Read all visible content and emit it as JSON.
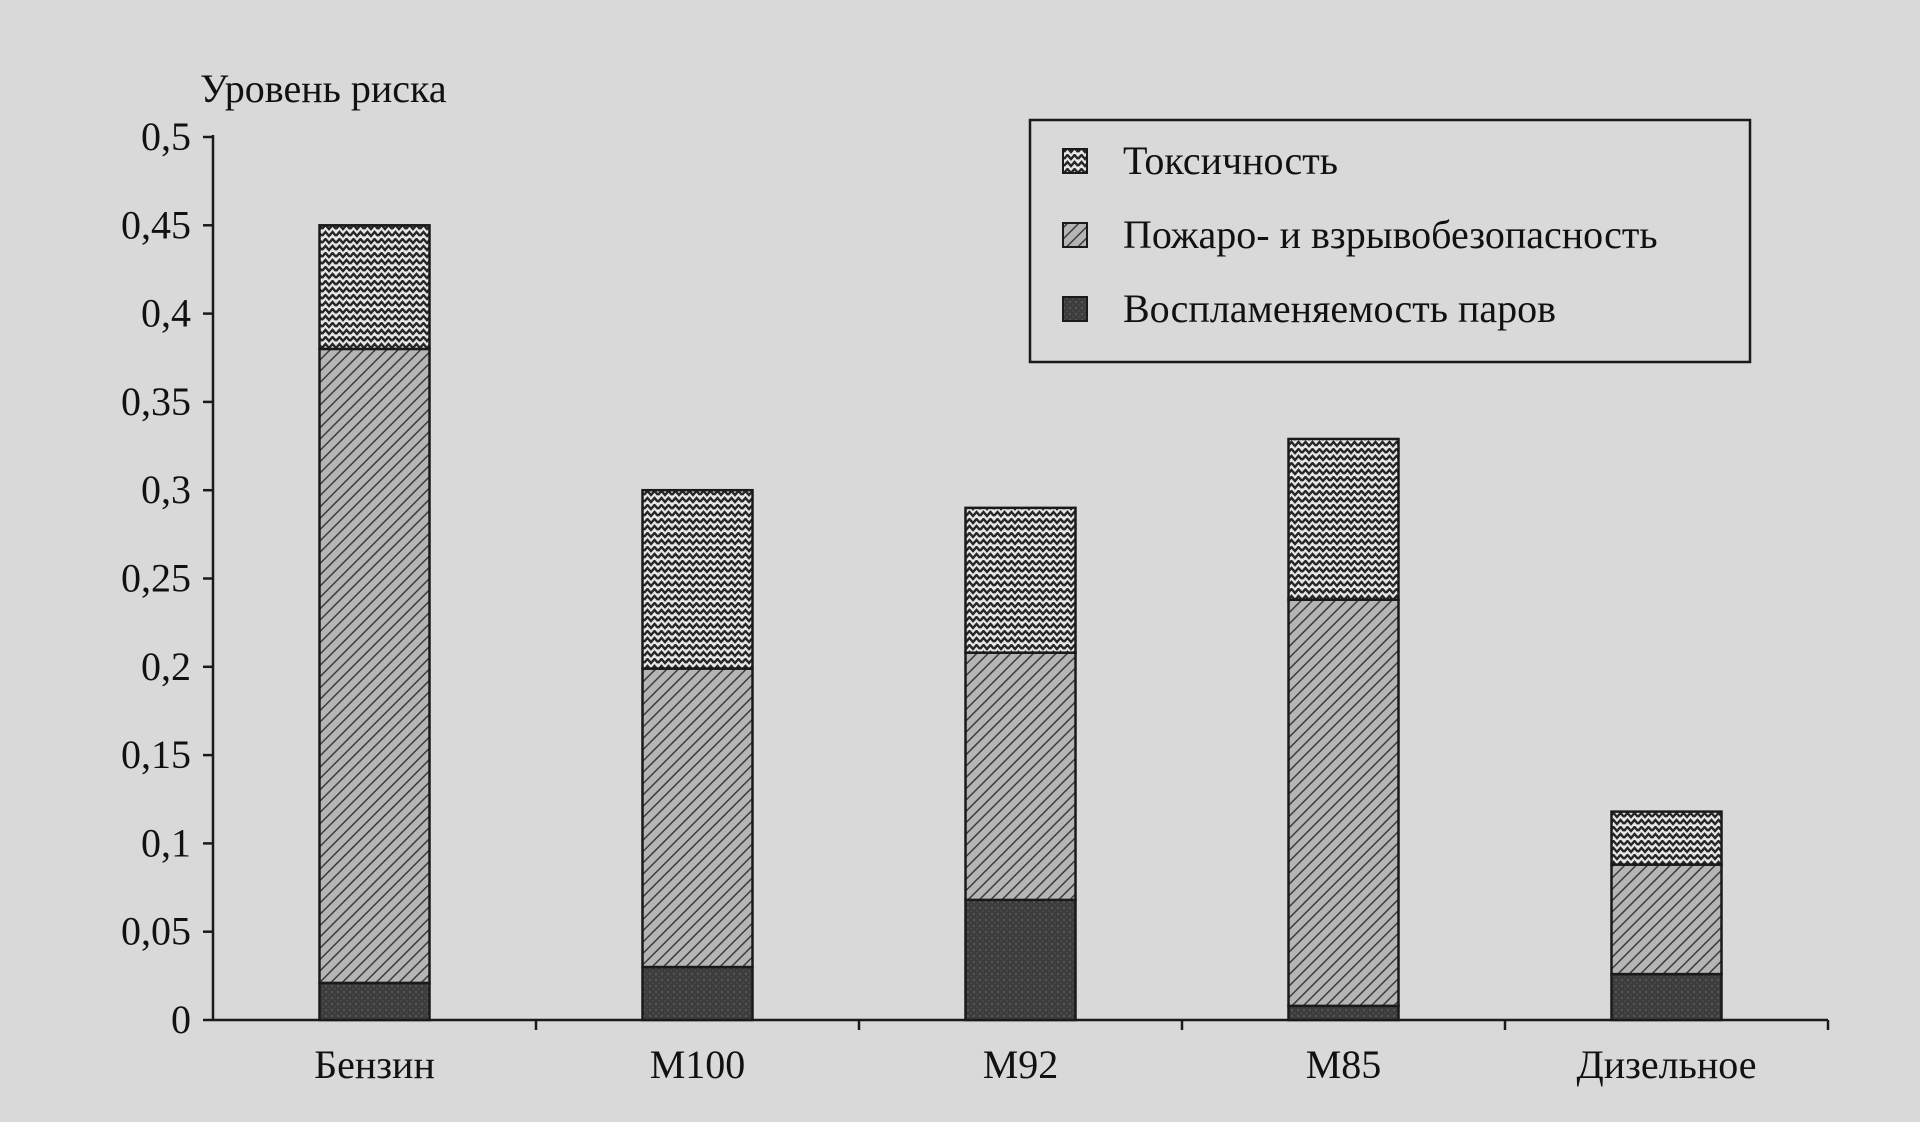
{
  "chart_data": {
    "type": "bar",
    "stacked": true,
    "ylabel": "Уровень риска",
    "ylim": [
      0,
      0.5
    ],
    "yticks": [
      0,
      0.05,
      0.1,
      0.15,
      0.2,
      0.25,
      0.3,
      0.35,
      0.4,
      0.45,
      0.5
    ],
    "ytick_labels": [
      "0",
      "0,05",
      "0,1",
      "0,15",
      "0,2",
      "0,25",
      "0,3",
      "0,35",
      "0,4",
      "0,45",
      "0,5"
    ],
    "categories": [
      "Бензин",
      "М100",
      "М92",
      "М85",
      "Дизельное"
    ],
    "series": [
      {
        "name": "Воспламеняемость паров",
        "values": [
          0.021,
          0.03,
          0.068,
          0.008,
          0.026
        ],
        "color": "#3a3a3a",
        "pattern": "solid-dark"
      },
      {
        "name": "Пожаро- и взрывобезопасность",
        "values": [
          0.359,
          0.169,
          0.14,
          0.23,
          0.062
        ],
        "color": "#555555",
        "pattern": "diagonal-hatch"
      },
      {
        "name": "Токсичность",
        "values": [
          0.07,
          0.101,
          0.082,
          0.091,
          0.03
        ],
        "color": "#222222",
        "pattern": "horizontal-zigzag"
      }
    ],
    "legend_order": [
      "Токсичность",
      "Пожаро- и взрывобезопасность",
      "Воспламеняемость паров"
    ],
    "legend_position": "top-right",
    "grid": false
  }
}
